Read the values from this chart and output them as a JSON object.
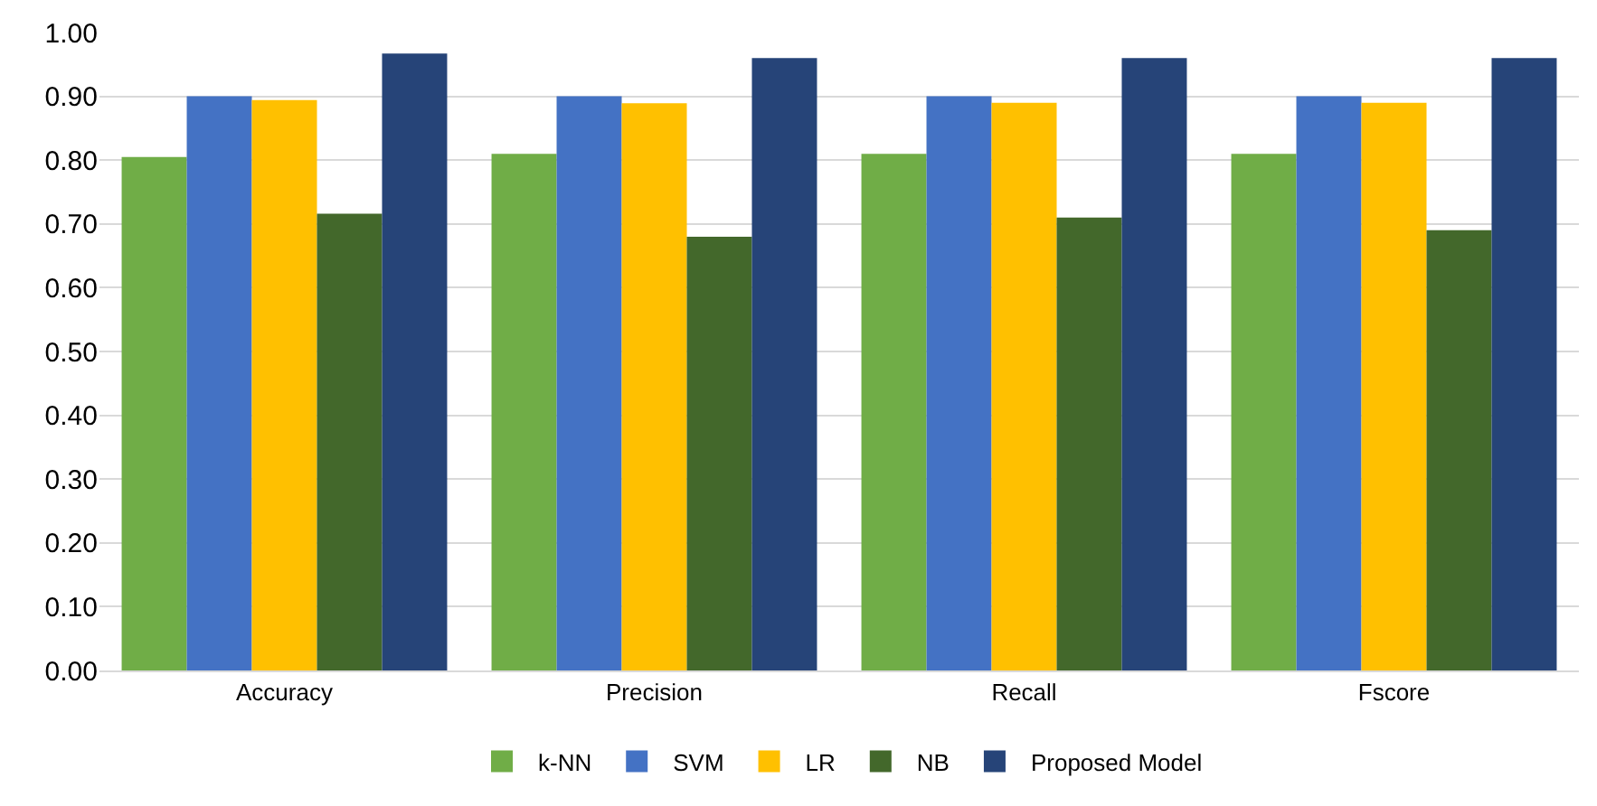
{
  "chart_data": {
    "type": "bar",
    "categories": [
      "Accuracy",
      "Precision",
      "Recall",
      "Fscore"
    ],
    "series": [
      {
        "name": "k-NN",
        "color": "#70ad47",
        "values": [
          0.805,
          0.81,
          0.81,
          0.81
        ]
      },
      {
        "name": "SVM",
        "color": "#4472c4",
        "values": [
          0.9,
          0.9,
          0.9,
          0.9
        ]
      },
      {
        "name": "LR",
        "color": "#ffc000",
        "values": [
          0.894,
          0.889,
          0.89,
          0.89
        ]
      },
      {
        "name": "NB",
        "color": "#43682b",
        "values": [
          0.716,
          0.68,
          0.71,
          0.69
        ]
      },
      {
        "name": "Proposed Model",
        "color": "#264478",
        "values": [
          0.967,
          0.96,
          0.96,
          0.96
        ]
      }
    ],
    "ylim": [
      0,
      1
    ],
    "yticks": [
      {
        "value": 0,
        "label": "0.00"
      },
      {
        "value": 0.1,
        "label": "0.10"
      },
      {
        "value": 0.2,
        "label": "0.20"
      },
      {
        "value": 0.3,
        "label": "0.30"
      },
      {
        "value": 0.4,
        "label": "0.40"
      },
      {
        "value": 0.5,
        "label": "0.50"
      },
      {
        "value": 0.6,
        "label": "0.60"
      },
      {
        "value": 0.7,
        "label": "0.70"
      },
      {
        "value": 0.8,
        "label": "0.80"
      },
      {
        "value": 0.9,
        "label": "0.90"
      },
      {
        "value": 1,
        "label": "1.00"
      }
    ],
    "grid": "y",
    "legend": "bottom"
  }
}
